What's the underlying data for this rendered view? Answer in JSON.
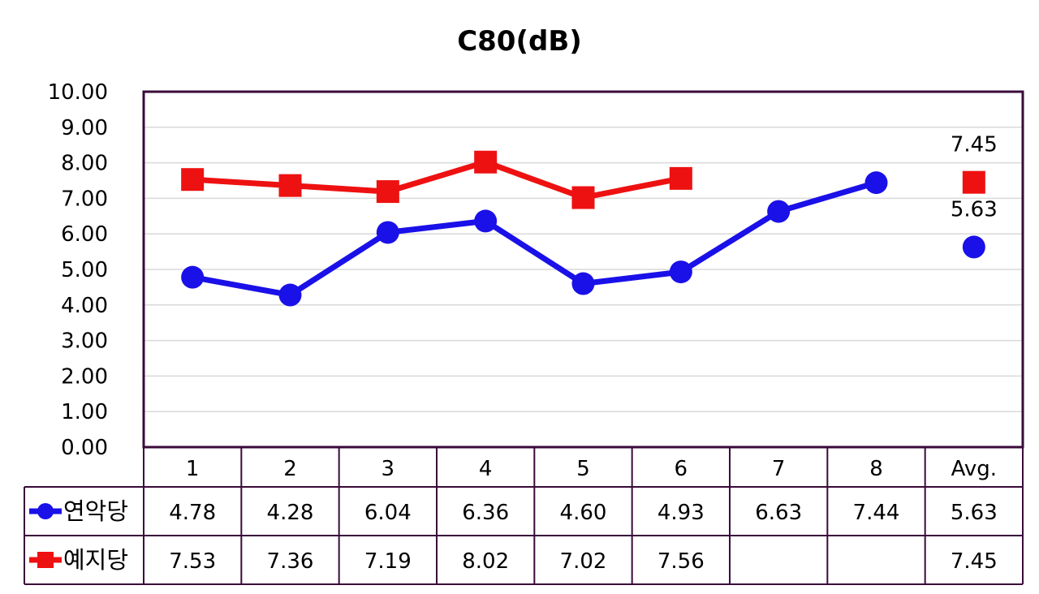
{
  "chart_data": {
    "type": "line",
    "title": "C80(dB)",
    "categories": [
      "1",
      "2",
      "3",
      "4",
      "5",
      "6",
      "7",
      "8",
      "Avg."
    ],
    "ylim": [
      0,
      10
    ],
    "yticks": [
      "0.00",
      "1.00",
      "2.00",
      "3.00",
      "4.00",
      "5.00",
      "6.00",
      "7.00",
      "8.00",
      "9.00",
      "10.00"
    ],
    "grid": true,
    "legend": "data-table",
    "series": [
      {
        "name": "연악당",
        "color": "#1a10e8",
        "marker": "circle",
        "values": [
          4.78,
          4.28,
          6.04,
          6.36,
          4.6,
          4.93,
          6.63,
          7.44,
          5.63
        ],
        "labels": [
          "4.78",
          "4.28",
          "6.04",
          "6.36",
          "4.60",
          "4.93",
          "6.63",
          "7.44",
          "5.63"
        ],
        "avg_label": "5.63"
      },
      {
        "name": "예지당",
        "color": "#ee1111",
        "marker": "square",
        "values": [
          7.53,
          7.36,
          7.19,
          8.02,
          7.02,
          7.56,
          null,
          null,
          7.45
        ],
        "labels": [
          "7.53",
          "7.36",
          "7.19",
          "8.02",
          "7.02",
          "7.56",
          "",
          "",
          "7.45"
        ],
        "avg_label": "7.45"
      }
    ]
  }
}
